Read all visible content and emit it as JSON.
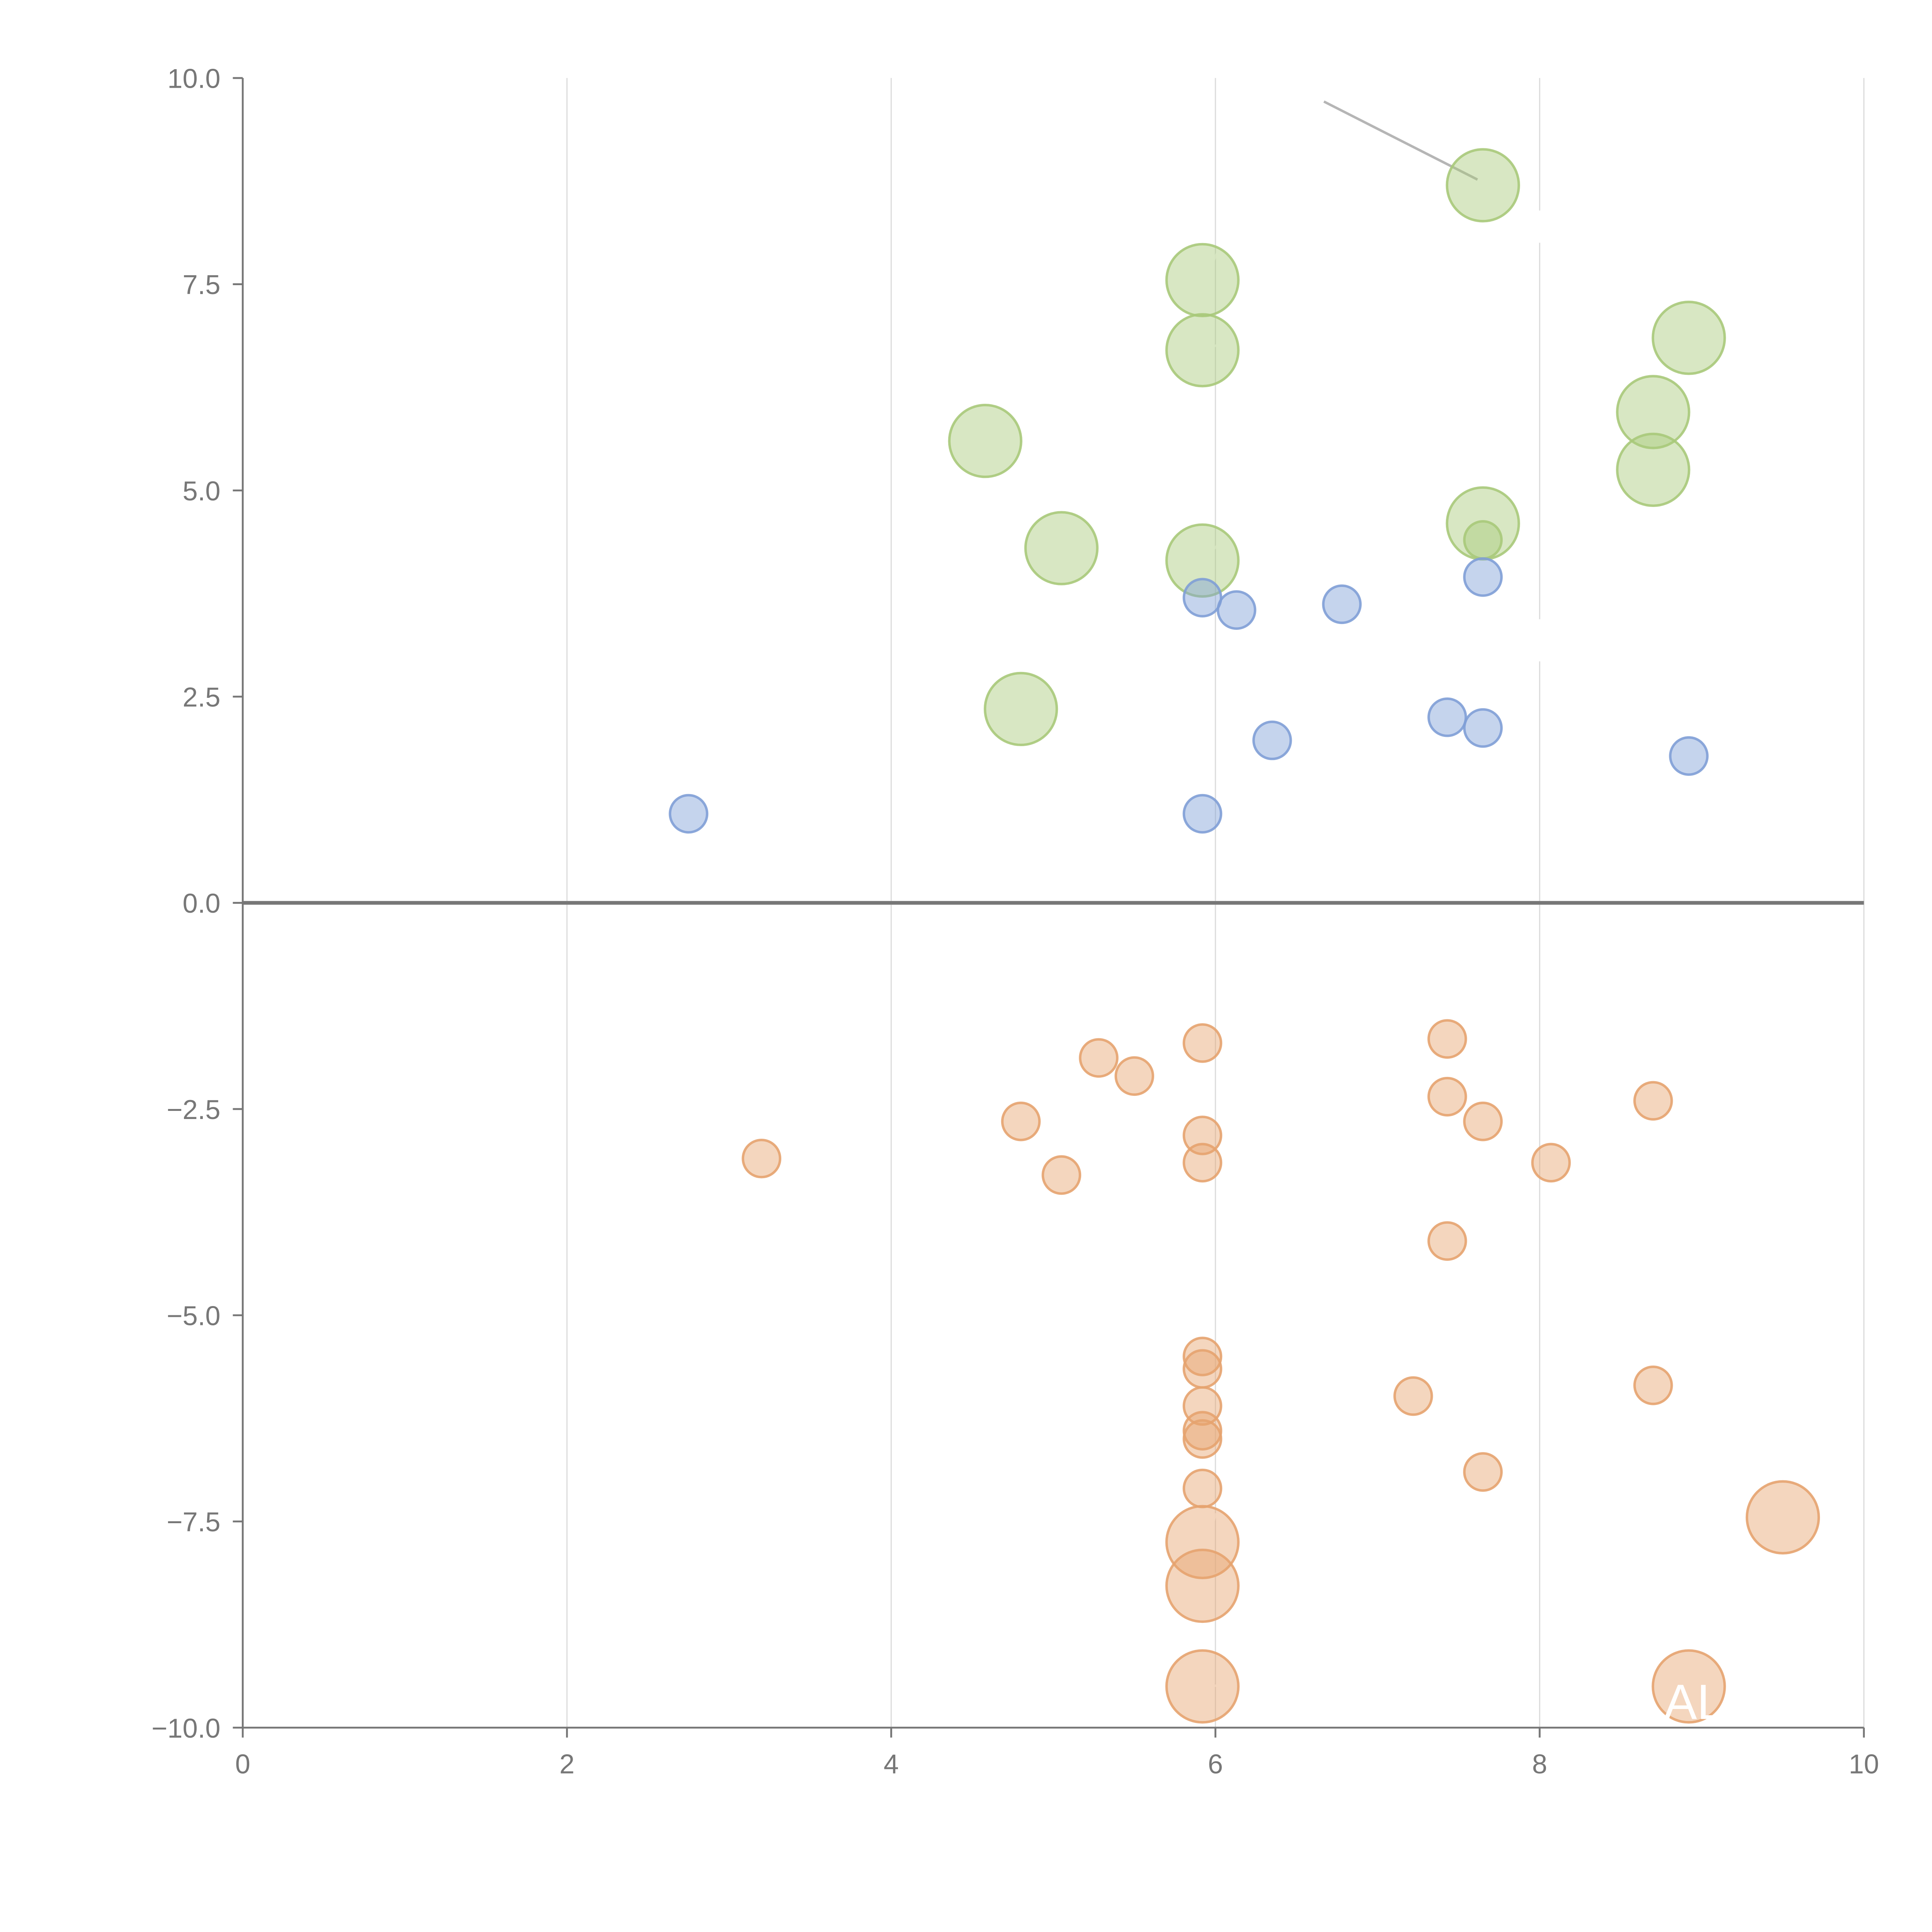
{
  "chart_data": {
    "type": "scatter",
    "xlim": [
      0,
      10
    ],
    "ylim": [
      -10,
      10
    ],
    "x_ticks": [
      "0",
      "2",
      "4",
      "6",
      "8",
      "10"
    ],
    "y_ticks": [
      "10.0",
      "7.5",
      "5.0",
      "2.5",
      "0.0",
      "−2.5",
      "−5.0",
      "−7.5",
      "−10.0"
    ],
    "grid": "vertical",
    "zero_line": true,
    "annotation_text": "AL",
    "colors": {
      "green": "#a9c97a",
      "blue": "#7f9fd6",
      "orange": "#e6a36f",
      "axis": "#777777",
      "grid": "#dddddd",
      "zero_line": "#777777"
    },
    "series": [
      {
        "color": "green",
        "points": [
          {
            "x": 7.65,
            "y": 8.7,
            "size": "large"
          },
          {
            "x": 5.92,
            "y": 7.55,
            "size": "large"
          },
          {
            "x": 5.92,
            "y": 6.7,
            "size": "large"
          },
          {
            "x": 8.92,
            "y": 6.85,
            "size": "large"
          },
          {
            "x": 8.7,
            "y": 5.95,
            "size": "large"
          },
          {
            "x": 4.58,
            "y": 5.6,
            "size": "large"
          },
          {
            "x": 8.7,
            "y": 5.25,
            "size": "large"
          },
          {
            "x": 7.65,
            "y": 4.6,
            "size": "large"
          },
          {
            "x": 5.05,
            "y": 4.3,
            "size": "large"
          },
          {
            "x": 5.92,
            "y": 4.15,
            "size": "large"
          },
          {
            "x": 4.8,
            "y": 2.35,
            "size": "large"
          },
          {
            "x": 7.65,
            "y": 4.4,
            "size": "small"
          }
        ]
      },
      {
        "color": "blue",
        "points": [
          {
            "x": 7.65,
            "y": 3.95,
            "size": "small"
          },
          {
            "x": 5.92,
            "y": 3.7,
            "size": "small"
          },
          {
            "x": 6.13,
            "y": 3.55,
            "size": "small"
          },
          {
            "x": 6.78,
            "y": 3.62,
            "size": "small"
          },
          {
            "x": 7.43,
            "y": 2.25,
            "size": "small"
          },
          {
            "x": 7.65,
            "y": 2.12,
            "size": "small"
          },
          {
            "x": 6.35,
            "y": 1.97,
            "size": "small"
          },
          {
            "x": 8.92,
            "y": 1.78,
            "size": "small"
          },
          {
            "x": 2.75,
            "y": 1.08,
            "size": "small"
          },
          {
            "x": 5.92,
            "y": 1.08,
            "size": "small"
          }
        ]
      },
      {
        "color": "orange",
        "points": [
          {
            "x": 5.92,
            "y": -1.7,
            "size": "small"
          },
          {
            "x": 7.43,
            "y": -1.65,
            "size": "small"
          },
          {
            "x": 5.28,
            "y": -1.88,
            "size": "small"
          },
          {
            "x": 5.5,
            "y": -2.1,
            "size": "small"
          },
          {
            "x": 7.43,
            "y": -2.35,
            "size": "small"
          },
          {
            "x": 8.7,
            "y": -2.4,
            "size": "small"
          },
          {
            "x": 4.8,
            "y": -2.65,
            "size": "small"
          },
          {
            "x": 7.65,
            "y": -2.65,
            "size": "small"
          },
          {
            "x": 5.92,
            "y": -2.82,
            "size": "small"
          },
          {
            "x": 3.2,
            "y": -3.1,
            "size": "small"
          },
          {
            "x": 5.92,
            "y": -3.15,
            "size": "small"
          },
          {
            "x": 8.07,
            "y": -3.15,
            "size": "small"
          },
          {
            "x": 5.05,
            "y": -3.3,
            "size": "small"
          },
          {
            "x": 7.43,
            "y": -4.1,
            "size": "small"
          },
          {
            "x": 5.92,
            "y": -5.5,
            "size": "small"
          },
          {
            "x": 5.92,
            "y": -5.65,
            "size": "small"
          },
          {
            "x": 8.7,
            "y": -5.85,
            "size": "small"
          },
          {
            "x": 7.22,
            "y": -5.98,
            "size": "small"
          },
          {
            "x": 5.92,
            "y": -6.1,
            "size": "small"
          },
          {
            "x": 5.92,
            "y": -6.4,
            "size": "small"
          },
          {
            "x": 5.92,
            "y": -6.5,
            "size": "small"
          },
          {
            "x": 7.65,
            "y": -6.9,
            "size": "small"
          },
          {
            "x": 5.92,
            "y": -7.1,
            "size": "small"
          },
          {
            "x": 9.5,
            "y": -7.45,
            "size": "large"
          },
          {
            "x": 5.92,
            "y": -7.75,
            "size": "large"
          },
          {
            "x": 5.92,
            "y": -8.28,
            "size": "large"
          },
          {
            "x": 5.92,
            "y": -9.5,
            "size": "large"
          },
          {
            "x": 8.92,
            "y": -9.5,
            "size": "large"
          }
        ]
      }
    ]
  }
}
